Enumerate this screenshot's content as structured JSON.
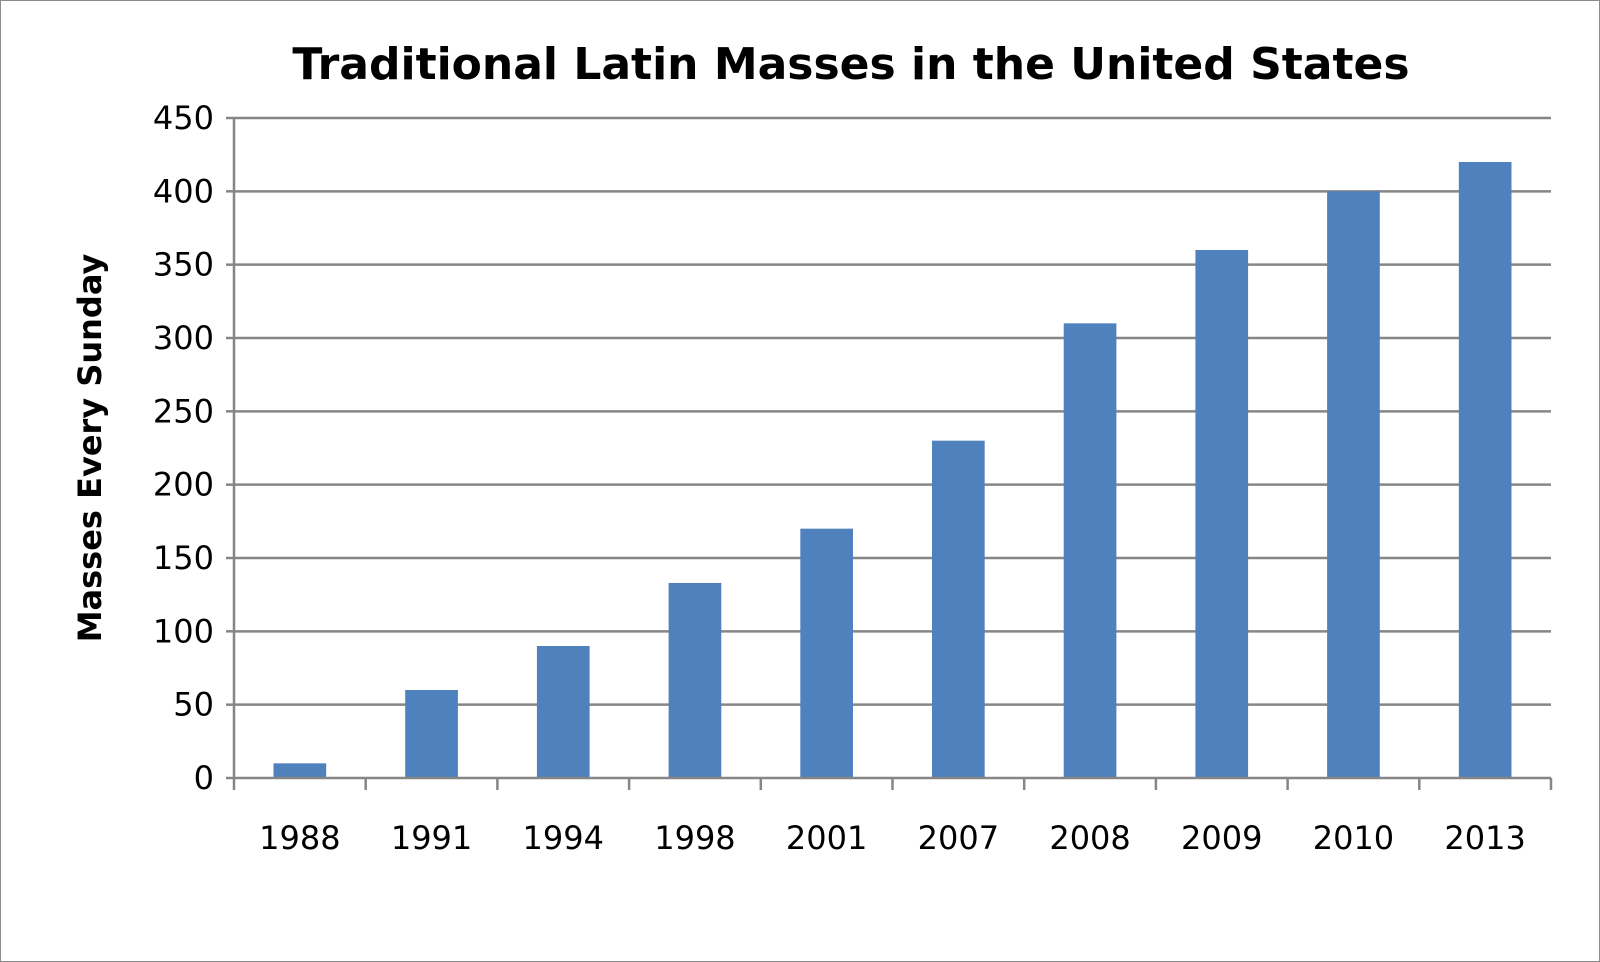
{
  "chart_data": {
    "type": "bar",
    "title": "Traditional Latin Masses in the United States",
    "xlabel": "",
    "ylabel": "Masses Every Sunday",
    "categories": [
      "1988",
      "1991",
      "1994",
      "1998",
      "2001",
      "2007",
      "2008",
      "2009",
      "2010",
      "2013"
    ],
    "values": [
      10,
      60,
      90,
      133,
      170,
      230,
      310,
      360,
      400,
      420
    ],
    "ylim": [
      0,
      450
    ],
    "yticks": [
      0,
      50,
      100,
      150,
      200,
      250,
      300,
      350,
      400,
      450
    ],
    "grid": true,
    "legend": "none",
    "bar_color": "#4f81bd"
  }
}
